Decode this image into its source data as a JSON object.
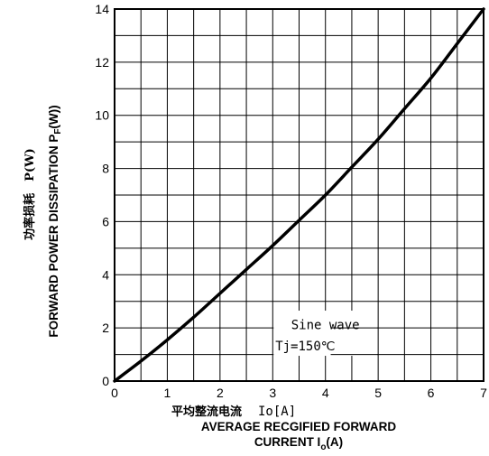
{
  "chart_data": {
    "type": "line",
    "title": "",
    "xlabel_cn": "平均整流电流",
    "xlabel_cn_symbol": "Io[A]",
    "xlabel_en_line1": "AVERAGE RECGIFIED FORWARD",
    "xlabel_en_line2_prefix": "CURRENT I",
    "xlabel_en_line2_sub": "o",
    "xlabel_en_line2_suffix": "(A)",
    "ylabel_cn": "功率损耗　P(W)",
    "ylabel_en_prefix": "FORWARD POWER DISSIPATION P",
    "ylabel_en_sub": "F",
    "ylabel_en_suffix": "(W))",
    "xlim": [
      0,
      7
    ],
    "ylim": [
      0,
      14
    ],
    "x_ticks": [
      "0",
      "1",
      "2",
      "3",
      "4",
      "5",
      "6",
      "7"
    ],
    "y_ticks": [
      "0",
      "2",
      "4",
      "6",
      "8",
      "10",
      "12",
      "14"
    ],
    "grid": true,
    "annotation_line1": "Sine wave",
    "annotation_line2": "Tj=150℃",
    "series": [
      {
        "x": [
          0,
          0.5,
          1,
          1.5,
          2,
          2.5,
          3,
          3.5,
          4,
          4.5,
          5,
          5.5,
          6,
          6.5,
          7
        ],
        "y": [
          0,
          0.75,
          1.55,
          2.4,
          3.3,
          4.2,
          5.1,
          6.05,
          7.0,
          8.05,
          9.1,
          10.25,
          11.4,
          12.7,
          14.0
        ]
      }
    ]
  }
}
